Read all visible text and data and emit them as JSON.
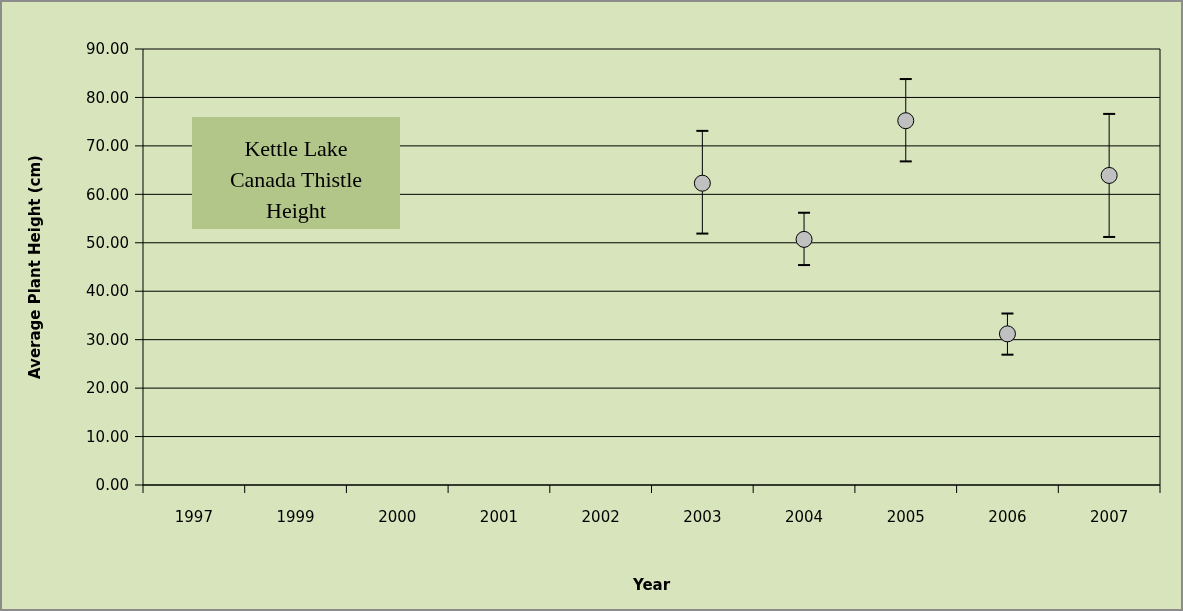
{
  "chart_data": {
    "type": "scatter",
    "title": "Kettle Lake\nCanada Thistle\nHeight",
    "xlabel": "Year",
    "ylabel": "Average Plant Height (cm)",
    "categories": [
      "1997",
      "1999",
      "2000",
      "2001",
      "2002",
      "2003",
      "2004",
      "2005",
      "2006",
      "2007"
    ],
    "series": [
      {
        "color": "#c0c0c0",
        "values": [
          null,
          null,
          null,
          null,
          null,
          62.3,
          50.7,
          75.2,
          31.2,
          63.9
        ],
        "errors": [
          null,
          null,
          null,
          null,
          null,
          [
            51.9,
            73.1
          ],
          [
            45.4,
            56.2
          ],
          [
            66.8,
            83.8
          ],
          [
            26.9,
            35.4
          ],
          [
            51.2,
            76.6
          ]
        ]
      }
    ],
    "ylim": [
      0,
      90
    ],
    "yticks": [
      {
        "value": 0,
        "label": "0.00"
      },
      {
        "value": 10,
        "label": "10.00"
      },
      {
        "value": 20,
        "label": "20.00"
      },
      {
        "value": 30,
        "label": "30.00"
      },
      {
        "value": 40,
        "label": "40.00"
      },
      {
        "value": 50,
        "label": "50.00"
      },
      {
        "value": 60,
        "label": "60.00"
      },
      {
        "value": 70,
        "label": "70.00"
      },
      {
        "value": 80,
        "label": "80.00"
      },
      {
        "value": 90,
        "label": "90.00"
      }
    ],
    "grid": "y",
    "marker": "circle"
  }
}
